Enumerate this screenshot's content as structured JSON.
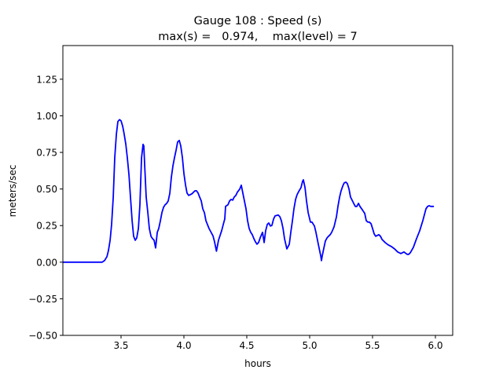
{
  "chart_data": {
    "type": "line",
    "title": [
      "Gauge 108 : Speed (s)",
      "max(s) =   0.974,    max(level) = 7"
    ],
    "xlabel": "hours",
    "ylabel": "meters/sec",
    "xlim": [
      3.0375,
      6.1375
    ],
    "ylim": [
      -0.5,
      1.48
    ],
    "xticks": [
      3.5,
      4.0,
      4.5,
      5.0,
      5.5,
      6.0
    ],
    "xtick_labels": [
      "3.5",
      "4.0",
      "4.5",
      "5.0",
      "5.5",
      "6.0"
    ],
    "yticks": [
      -0.5,
      -0.25,
      0.0,
      0.25,
      0.5,
      0.75,
      1.0,
      1.25
    ],
    "ytick_labels": [
      "−0.50",
      "−0.25",
      "0.00",
      "0.25",
      "0.50",
      "0.75",
      "1.00",
      "1.25"
    ],
    "grid": false,
    "legend": null,
    "series": [
      {
        "name": "speed",
        "color": "#0000ff",
        "x": [
          3.038,
          3.35,
          3.369,
          3.388,
          3.4,
          3.413,
          3.425,
          3.438,
          3.45,
          3.463,
          3.475,
          3.488,
          3.5,
          3.513,
          3.525,
          3.538,
          3.55,
          3.563,
          3.575,
          3.588,
          3.6,
          3.613,
          3.625,
          3.638,
          3.65,
          3.663,
          3.675,
          3.681,
          3.688,
          3.7,
          3.713,
          3.725,
          3.738,
          3.75,
          3.763,
          3.775,
          3.788,
          3.8,
          3.813,
          3.825,
          3.838,
          3.85,
          3.863,
          3.875,
          3.888,
          3.9,
          3.913,
          3.925,
          3.938,
          3.95,
          3.963,
          3.975,
          3.988,
          4.0,
          4.013,
          4.025,
          4.038,
          4.063,
          4.088,
          4.1,
          4.113,
          4.125,
          4.138,
          4.15,
          4.163,
          4.175,
          4.2,
          4.231,
          4.244,
          4.259,
          4.275,
          4.3,
          4.313,
          4.325,
          4.331,
          4.35,
          4.363,
          4.375,
          4.388,
          4.4,
          4.413,
          4.425,
          4.444,
          4.456,
          4.469,
          4.481,
          4.494,
          4.506,
          4.519,
          4.531,
          4.544,
          4.556,
          4.569,
          4.581,
          4.594,
          4.606,
          4.625,
          4.638,
          4.65,
          4.663,
          4.675,
          4.688,
          4.7,
          4.713,
          4.725,
          4.75,
          4.763,
          4.775,
          4.788,
          4.8,
          4.819,
          4.838,
          4.85,
          4.863,
          4.875,
          4.888,
          4.9,
          4.913,
          4.931,
          4.944,
          4.95,
          4.963,
          4.975,
          4.988,
          5.006,
          5.019,
          5.038,
          5.05,
          5.069,
          5.088,
          5.094,
          5.1,
          5.113,
          5.125,
          5.138,
          5.15,
          5.163,
          5.175,
          5.194,
          5.213,
          5.225,
          5.238,
          5.25,
          5.263,
          5.275,
          5.288,
          5.3,
          5.313,
          5.325,
          5.35,
          5.363,
          5.375,
          5.388,
          5.4,
          5.413,
          5.438,
          5.45,
          5.463,
          5.475,
          5.488,
          5.5,
          5.513,
          5.525,
          5.55,
          5.563,
          5.575,
          5.6,
          5.625,
          5.65,
          5.675,
          5.7,
          5.725,
          5.75,
          5.775,
          5.788,
          5.8,
          5.825,
          5.85,
          5.875,
          5.9,
          5.925,
          5.938,
          5.95,
          5.963,
          5.988
        ],
        "y": [
          0,
          0,
          0.011,
          0.038,
          0.08,
          0.15,
          0.258,
          0.445,
          0.714,
          0.876,
          0.961,
          0.974,
          0.966,
          0.929,
          0.875,
          0.805,
          0.714,
          0.596,
          0.445,
          0.284,
          0.177,
          0.15,
          0.166,
          0.231,
          0.392,
          0.714,
          0.805,
          0.794,
          0.66,
          0.445,
          0.338,
          0.231,
          0.177,
          0.161,
          0.15,
          0.097,
          0.204,
          0.231,
          0.284,
          0.338,
          0.375,
          0.392,
          0.402,
          0.418,
          0.472,
          0.579,
          0.66,
          0.714,
          0.767,
          0.821,
          0.832,
          0.794,
          0.714,
          0.606,
          0.526,
          0.472,
          0.456,
          0.467,
          0.488,
          0.488,
          0.472,
          0.445,
          0.418,
          0.365,
          0.338,
          0.284,
          0.23,
          0.18,
          0.139,
          0.075,
          0.15,
          0.215,
          0.258,
          0.295,
          0.381,
          0.392,
          0.418,
          0.429,
          0.424,
          0.445,
          0.456,
          0.478,
          0.499,
          0.526,
          0.472,
          0.418,
          0.365,
          0.284,
          0.231,
          0.204,
          0.188,
          0.161,
          0.139,
          0.123,
          0.134,
          0.166,
          0.204,
          0.134,
          0.215,
          0.258,
          0.268,
          0.247,
          0.252,
          0.295,
          0.316,
          0.322,
          0.311,
          0.284,
          0.231,
          0.161,
          0.091,
          0.123,
          0.204,
          0.284,
          0.365,
          0.429,
          0.461,
          0.483,
          0.51,
          0.553,
          0.563,
          0.51,
          0.418,
          0.338,
          0.274,
          0.274,
          0.247,
          0.204,
          0.123,
          0.043,
          0.011,
          0.043,
          0.097,
          0.145,
          0.166,
          0.177,
          0.188,
          0.204,
          0.241,
          0.311,
          0.381,
          0.445,
          0.488,
          0.52,
          0.542,
          0.547,
          0.536,
          0.499,
          0.445,
          0.402,
          0.381,
          0.381,
          0.402,
          0.381,
          0.365,
          0.333,
          0.284,
          0.274,
          0.274,
          0.263,
          0.231,
          0.193,
          0.177,
          0.188,
          0.177,
          0.156,
          0.134,
          0.118,
          0.107,
          0.091,
          0.07,
          0.059,
          0.07,
          0.054,
          0.054,
          0.064,
          0.102,
          0.161,
          0.215,
          0.284,
          0.365,
          0.381,
          0.386,
          0.381,
          0.381
        ]
      }
    ]
  }
}
